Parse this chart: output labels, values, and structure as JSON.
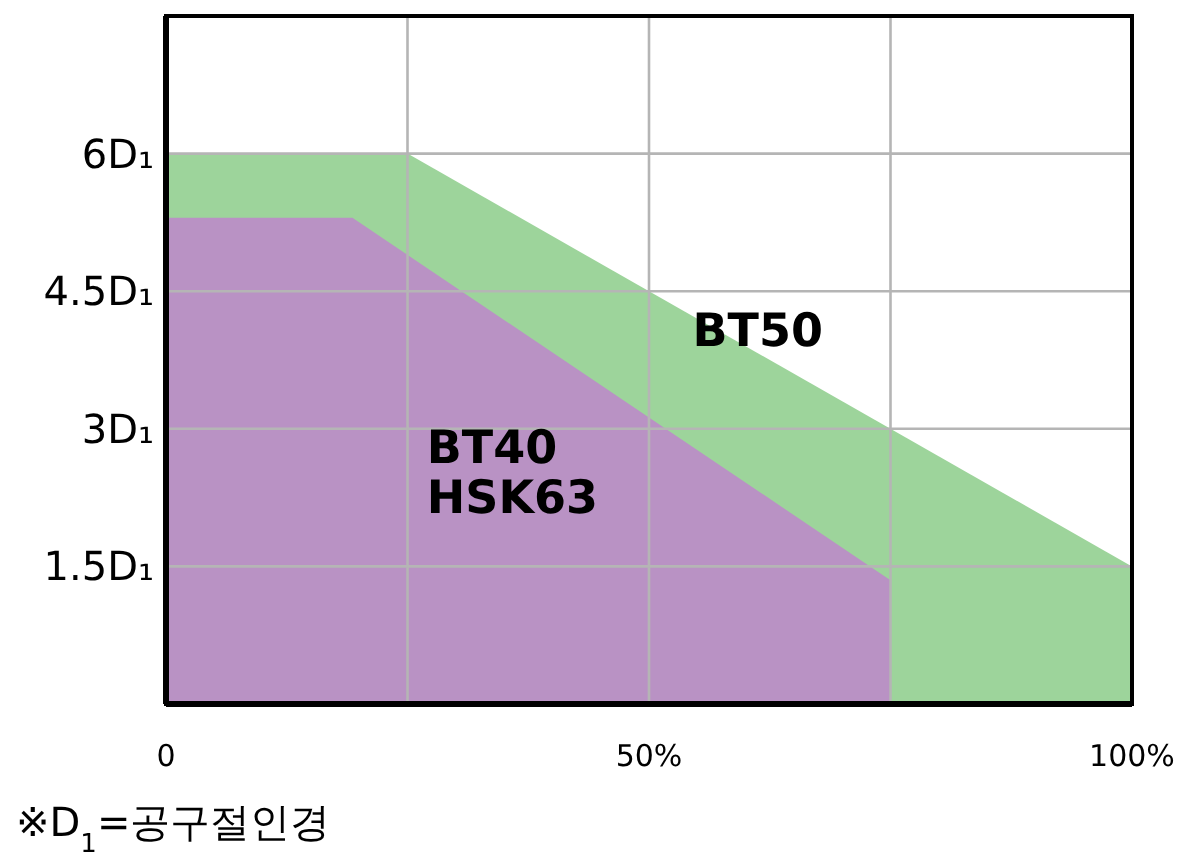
{
  "chart_data": {
    "type": "area",
    "legend": false,
    "grid": true,
    "xlim": [
      0,
      100
    ],
    "ylim": [
      0,
      7.5
    ],
    "xticks": [
      {
        "value": 0,
        "label": "0"
      },
      {
        "value": 25,
        "label": null
      },
      {
        "value": 50,
        "label": "50%"
      },
      {
        "value": 75,
        "label": null
      },
      {
        "value": 100,
        "label": "100%"
      }
    ],
    "yticks": [
      {
        "value": 1.5,
        "label": "1.5D₁"
      },
      {
        "value": 3,
        "label": "3D₁"
      },
      {
        "value": 4.5,
        "label": "4.5D₁"
      },
      {
        "value": 6,
        "label": "6D₁"
      }
    ],
    "series": [
      {
        "name": "BT50",
        "color": "#9dd49b",
        "x": [
          0,
          25,
          100
        ],
        "values": [
          6,
          6,
          1.5
        ]
      },
      {
        "name": "BT40 HSK63",
        "color": "#b992c4",
        "x": [
          0,
          19.3,
          75,
          75
        ],
        "values": [
          5.3,
          5.3,
          1.35,
          0
        ]
      }
    ],
    "annotations": [
      "※D$_{1}$=공구절인경"
    ]
  }
}
